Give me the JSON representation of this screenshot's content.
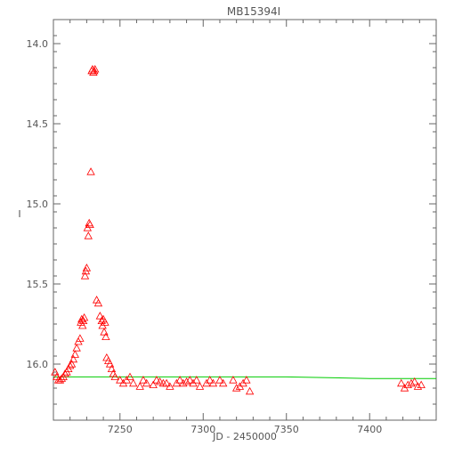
{
  "chart_data": {
    "type": "scatter",
    "title": "MB15394I",
    "xlabel": "JD - 2450000",
    "ylabel": "I",
    "xlim": [
      7210,
      7440
    ],
    "ylim": [
      16.35,
      13.85
    ],
    "y_inverted": true,
    "x_ticks": [
      7250,
      7300,
      7350,
      7400
    ],
    "x_tick_labels": [
      "7250",
      "7300",
      "7350",
      "7400"
    ],
    "y_ticks": [
      14.0,
      14.5,
      15.0,
      15.5,
      16.0
    ],
    "y_tick_labels": [
      "14.0",
      "14.5",
      "15.0",
      "15.5",
      "16.0"
    ],
    "grid": false,
    "colors": {
      "data": "#ff0000",
      "model": "#00cc00",
      "axis": "#666666"
    },
    "series": [
      {
        "marker": "open-triangle",
        "x": [
          7211,
          7212,
          7213,
          7214,
          7215,
          7216,
          7217,
          7218,
          7219,
          7220,
          7221,
          7222,
          7223,
          7224,
          7225,
          7226,
          7226.5,
          7227,
          7227.5,
          7228,
          7228.5,
          7229,
          7229.5,
          7230,
          7230.5,
          7231,
          7231.5,
          7232,
          7232.5,
          7233,
          7233.5,
          7234,
          7234.5,
          7235,
          7236,
          7237,
          7238,
          7239,
          7239.5,
          7240,
          7240.5,
          7241,
          7241.5,
          7242,
          7243,
          7244,
          7245,
          7246,
          7247,
          7250,
          7252,
          7254,
          7256,
          7258,
          7262,
          7264,
          7266,
          7270,
          7272,
          7274,
          7276,
          7278,
          7280,
          7284,
          7286,
          7288,
          7290,
          7292,
          7294,
          7296,
          7298,
          7302,
          7304,
          7306,
          7310,
          7312,
          7318,
          7320,
          7322,
          7324,
          7326,
          7328,
          7419,
          7421,
          7423,
          7425,
          7427,
          7429,
          7431
        ],
        "y": [
          16.05,
          16.08,
          16.1,
          16.1,
          16.09,
          16.08,
          16.06,
          16.05,
          16.03,
          16.01,
          16.0,
          15.97,
          15.94,
          15.9,
          15.86,
          15.84,
          15.74,
          15.72,
          15.76,
          15.73,
          15.71,
          15.45,
          15.42,
          15.4,
          15.15,
          15.2,
          15.12,
          15.13,
          14.8,
          14.17,
          14.16,
          14.18,
          14.17,
          14.16,
          15.6,
          15.62,
          15.7,
          15.73,
          15.76,
          15.72,
          15.8,
          15.74,
          15.83,
          15.96,
          15.98,
          16.0,
          16.03,
          16.06,
          16.08,
          16.1,
          16.12,
          16.1,
          16.08,
          16.12,
          16.14,
          16.1,
          16.12,
          16.13,
          16.1,
          16.11,
          16.12,
          16.12,
          16.14,
          16.12,
          16.1,
          16.12,
          16.11,
          16.1,
          16.12,
          16.1,
          16.14,
          16.12,
          16.1,
          16.12,
          16.1,
          16.12,
          16.1,
          16.15,
          16.14,
          16.12,
          16.1,
          16.17,
          16.12,
          16.15,
          16.13,
          16.12,
          16.11,
          16.14,
          16.13
        ]
      },
      {
        "marker": "line",
        "x": [
          7210,
          7250,
          7300,
          7350,
          7400,
          7440
        ],
        "y": [
          16.08,
          16.08,
          16.08,
          16.08,
          16.09,
          16.09
        ]
      }
    ]
  }
}
